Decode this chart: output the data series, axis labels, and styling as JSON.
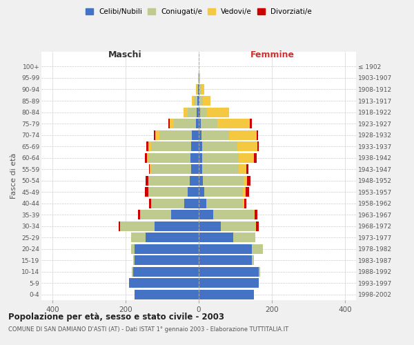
{
  "age_groups": [
    "0-4",
    "5-9",
    "10-14",
    "15-19",
    "20-24",
    "25-29",
    "30-34",
    "35-39",
    "40-44",
    "45-49",
    "50-54",
    "55-59",
    "60-64",
    "65-69",
    "70-74",
    "75-79",
    "80-84",
    "85-89",
    "90-94",
    "95-99",
    "100+"
  ],
  "birth_years": [
    "1998-2002",
    "1993-1997",
    "1988-1992",
    "1983-1987",
    "1978-1982",
    "1973-1977",
    "1968-1972",
    "1963-1967",
    "1958-1962",
    "1953-1957",
    "1948-1952",
    "1943-1947",
    "1938-1942",
    "1933-1937",
    "1928-1932",
    "1923-1927",
    "1918-1922",
    "1913-1917",
    "1908-1912",
    "1903-1907",
    "≤ 1902"
  ],
  "males": {
    "celibi": [
      175,
      190,
      180,
      175,
      175,
      145,
      120,
      75,
      40,
      30,
      25,
      20,
      22,
      20,
      18,
      8,
      5,
      3,
      2,
      0,
      0
    ],
    "coniugati": [
      0,
      0,
      2,
      5,
      10,
      40,
      95,
      85,
      90,
      105,
      110,
      110,
      115,
      110,
      90,
      60,
      25,
      10,
      4,
      1,
      0
    ],
    "vedovi": [
      0,
      0,
      0,
      0,
      0,
      0,
      0,
      1,
      1,
      2,
      3,
      3,
      5,
      8,
      10,
      12,
      12,
      5,
      2,
      0,
      0
    ],
    "divorziati": [
      0,
      0,
      0,
      0,
      0,
      0,
      3,
      5,
      5,
      10,
      8,
      3,
      5,
      5,
      5,
      3,
      0,
      0,
      0,
      0,
      0
    ]
  },
  "females": {
    "nubili": [
      150,
      165,
      165,
      145,
      145,
      95,
      60,
      40,
      20,
      15,
      12,
      10,
      10,
      10,
      8,
      5,
      3,
      2,
      2,
      0,
      0
    ],
    "coniugate": [
      0,
      0,
      2,
      5,
      30,
      60,
      95,
      110,
      100,
      105,
      110,
      100,
      100,
      95,
      75,
      45,
      20,
      10,
      5,
      2,
      0
    ],
    "vedove": [
      0,
      0,
      0,
      0,
      0,
      0,
      2,
      3,
      5,
      8,
      10,
      20,
      40,
      55,
      75,
      90,
      60,
      20,
      8,
      2,
      0
    ],
    "divorziate": [
      0,
      0,
      0,
      0,
      0,
      0,
      8,
      8,
      5,
      10,
      10,
      5,
      8,
      5,
      5,
      5,
      0,
      0,
      0,
      0,
      0
    ]
  },
  "colors": {
    "celibi": "#4472C4",
    "coniugati": "#BECA8E",
    "vedovi": "#F5C842",
    "divorziati": "#CC0000"
  },
  "xlim": 430,
  "title": "Popolazione per età, sesso e stato civile - 2003",
  "subtitle": "COMUNE DI SAN DAMIANO D'ASTI (AT) - Dati ISTAT 1° gennaio 2003 - Elaborazione TUTTITALIA.IT",
  "ylabel_left": "Fasce di età",
  "xlabel_left": "Maschi",
  "xlabel_right": "Femmine",
  "bg_color": "#f0f0f0",
  "plot_bg": "#ffffff"
}
